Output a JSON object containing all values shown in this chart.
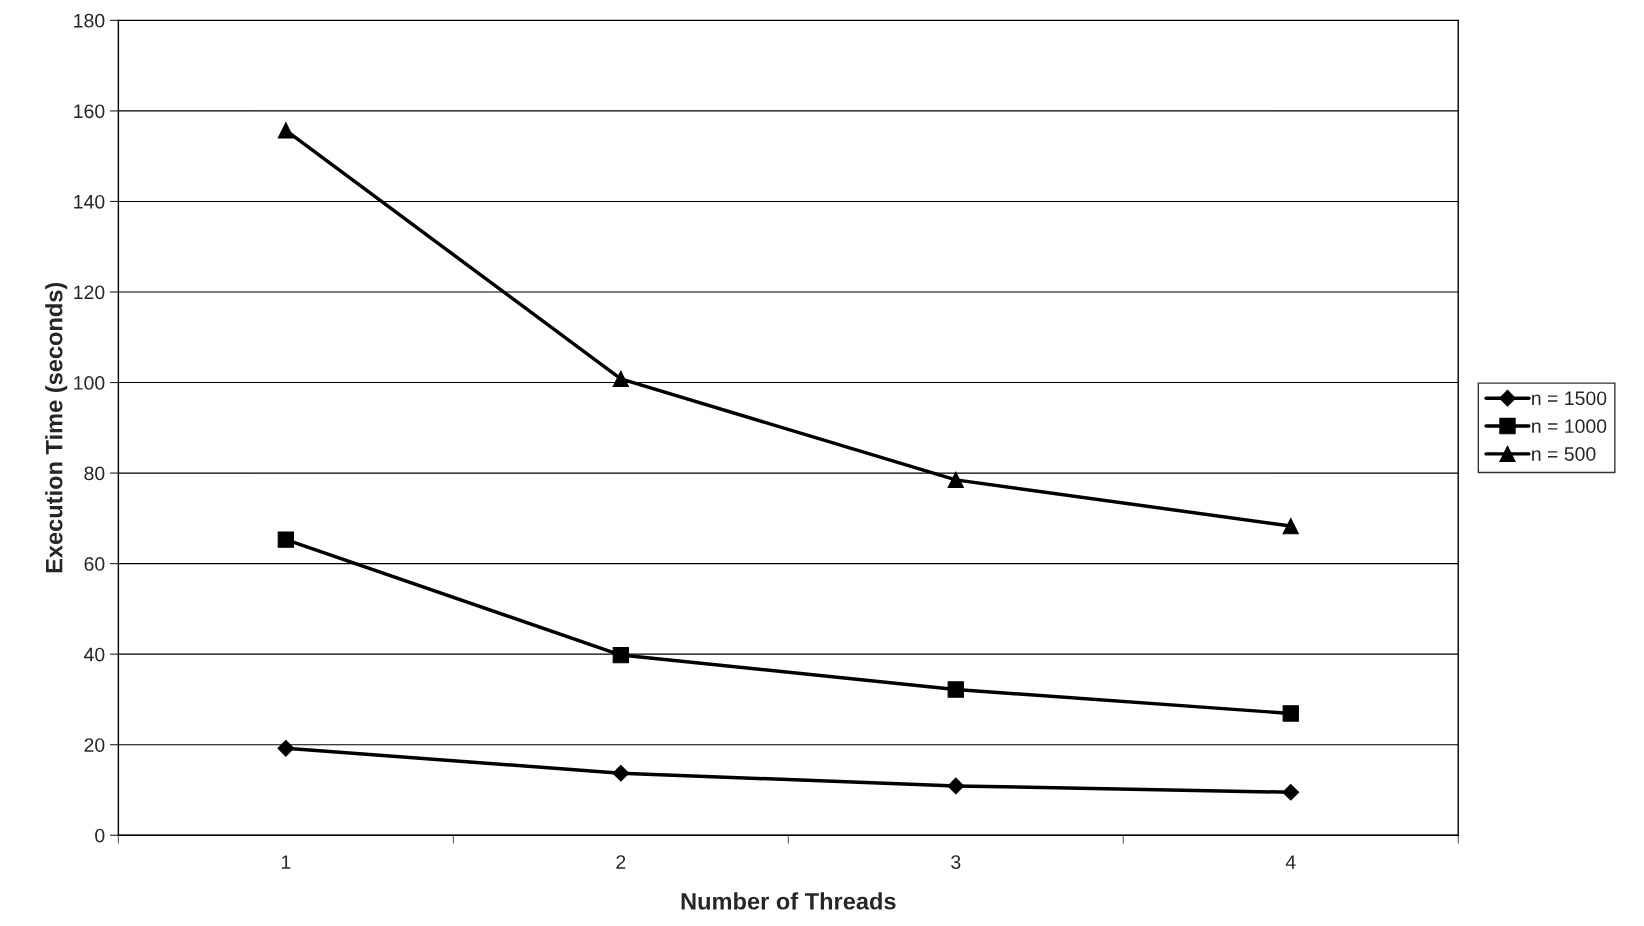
{
  "chart_data": {
    "type": "line",
    "xlabel": "Number of Threads",
    "ylabel": "Execution Time (seconds)",
    "categories": [
      "1",
      "2",
      "3",
      "4"
    ],
    "series": [
      {
        "name": "n = 1500",
        "color": "#000000",
        "marker": "diamond",
        "values": [
          19.2,
          13.7,
          10.9,
          9.5
        ]
      },
      {
        "name": "n = 1000",
        "color": "#000000",
        "marker": "square",
        "values": [
          65.3,
          39.8,
          32.2,
          26.9
        ]
      },
      {
        "name": "n = 500",
        "color": "#000000",
        "marker": "triangle",
        "values": [
          155.7,
          100.8,
          78.5,
          68.3
        ]
      }
    ],
    "ylim": [
      0,
      180
    ],
    "yticks": [
      0,
      20,
      40,
      60,
      80,
      100,
      120,
      140,
      160,
      180
    ],
    "grid": "y",
    "legend": "right",
    "line_style": "solid"
  }
}
